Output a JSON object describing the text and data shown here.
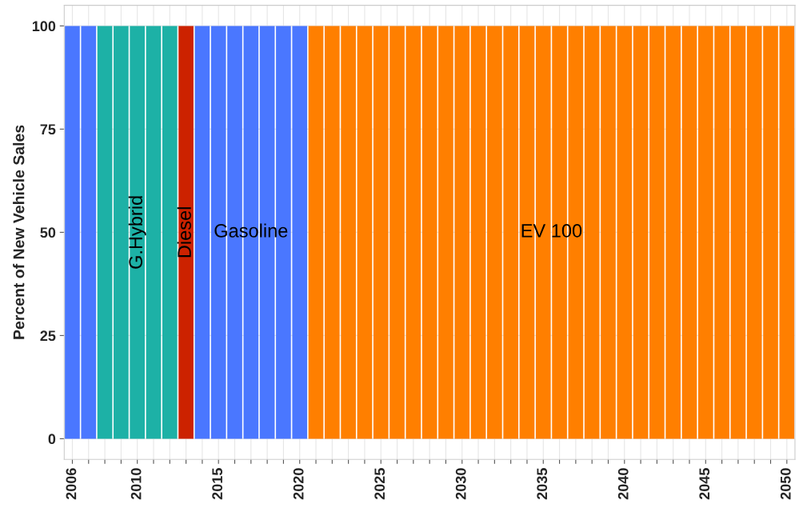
{
  "chart_data": {
    "type": "bar",
    "stacked": true,
    "ylabel": "Percent of New Vehicle Sales",
    "x": [
      2006,
      2007,
      2008,
      2009,
      2010,
      2011,
      2012,
      2013,
      2014,
      2015,
      2016,
      2017,
      2018,
      2019,
      2020,
      2021,
      2022,
      2023,
      2024,
      2025,
      2026,
      2027,
      2028,
      2029,
      2030,
      2031,
      2032,
      2033,
      2034,
      2035,
      2036,
      2037,
      2038,
      2039,
      2040,
      2041,
      2042,
      2043,
      2044,
      2045,
      2046,
      2047,
      2048,
      2049,
      2050
    ],
    "series": [
      {
        "name": "Gasoline",
        "color": "#4a77ff",
        "values": [
          100,
          100,
          null,
          null,
          null,
          null,
          null,
          null,
          100,
          100,
          100,
          100,
          100,
          100,
          100,
          null,
          null,
          null,
          null,
          null,
          null,
          null,
          null,
          null,
          null,
          null,
          null,
          null,
          null,
          null,
          null,
          null,
          null,
          null,
          null,
          null,
          null,
          null,
          null,
          null,
          null,
          null,
          null,
          null,
          null
        ]
      },
      {
        "name": "G.Hybrid",
        "color": "#1db1a6",
        "values": [
          null,
          null,
          100,
          100,
          100,
          100,
          100,
          null,
          null,
          null,
          null,
          null,
          null,
          null,
          null,
          null,
          null,
          null,
          null,
          null,
          null,
          null,
          null,
          null,
          null,
          null,
          null,
          null,
          null,
          null,
          null,
          null,
          null,
          null,
          null,
          null,
          null,
          null,
          null,
          null,
          null,
          null,
          null,
          null,
          null
        ]
      },
      {
        "name": "Diesel",
        "color": "#cc2200",
        "values": [
          null,
          null,
          null,
          null,
          null,
          null,
          null,
          100,
          null,
          null,
          null,
          null,
          null,
          null,
          null,
          null,
          null,
          null,
          null,
          null,
          null,
          null,
          null,
          null,
          null,
          null,
          null,
          null,
          null,
          null,
          null,
          null,
          null,
          null,
          null,
          null,
          null,
          null,
          null,
          null,
          null,
          null,
          null,
          null,
          null
        ]
      },
      {
        "name": "EV 100",
        "color": "#ff7f00",
        "values": [
          null,
          null,
          null,
          null,
          null,
          null,
          null,
          null,
          null,
          null,
          null,
          null,
          null,
          null,
          null,
          100,
          100,
          100,
          100,
          100,
          100,
          100,
          100,
          100,
          100,
          100,
          100,
          100,
          100,
          100,
          100,
          100,
          100,
          100,
          100,
          100,
          100,
          100,
          100,
          100,
          100,
          100,
          100,
          100,
          100
        ]
      }
    ],
    "xlim": [
      2005.5,
      2050.5
    ],
    "ylim": [
      -5,
      105
    ],
    "xticks": [
      2006,
      {
        "value": 2007,
        "label": null
      },
      {
        "value": 2008,
        "label": null
      },
      {
        "value": 2009,
        "label": null
      },
      2010,
      {
        "value": 2011,
        "label": null
      },
      {
        "value": 2012,
        "label": null
      },
      {
        "value": 2013,
        "label": null
      },
      {
        "value": 2014,
        "label": null
      },
      2015,
      {
        "value": 2016,
        "label": null
      },
      {
        "value": 2017,
        "label": null
      },
      {
        "value": 2018,
        "label": null
      },
      {
        "value": 2019,
        "label": null
      },
      2020,
      {
        "value": 2021,
        "label": null
      },
      {
        "value": 2022,
        "label": null
      },
      {
        "value": 2023,
        "label": null
      },
      {
        "value": 2024,
        "label": null
      },
      2025,
      {
        "value": 2026,
        "label": null
      },
      {
        "value": 2027,
        "label": null
      },
      {
        "value": 2028,
        "label": null
      },
      {
        "value": 2029,
        "label": null
      },
      2030,
      {
        "value": 2031,
        "label": null
      },
      {
        "value": 2032,
        "label": null
      },
      {
        "value": 2033,
        "label": null
      },
      {
        "value": 2034,
        "label": null
      },
      2035,
      {
        "value": 2036,
        "label": null
      },
      {
        "value": 2037,
        "label": null
      },
      {
        "value": 2038,
        "label": null
      },
      {
        "value": 2039,
        "label": null
      },
      2040,
      {
        "value": 2041,
        "label": null
      },
      {
        "value": 2042,
        "label": null
      },
      {
        "value": 2043,
        "label": null
      },
      {
        "value": 2044,
        "label": null
      },
      2045,
      {
        "value": 2046,
        "label": null
      },
      {
        "value": 2047,
        "label": null
      },
      {
        "value": 2048,
        "label": null
      },
      {
        "value": 2049,
        "label": null
      },
      2050
    ],
    "yticks": [
      0,
      25,
      50,
      75,
      100
    ],
    "grid": true,
    "legend": false
  }
}
